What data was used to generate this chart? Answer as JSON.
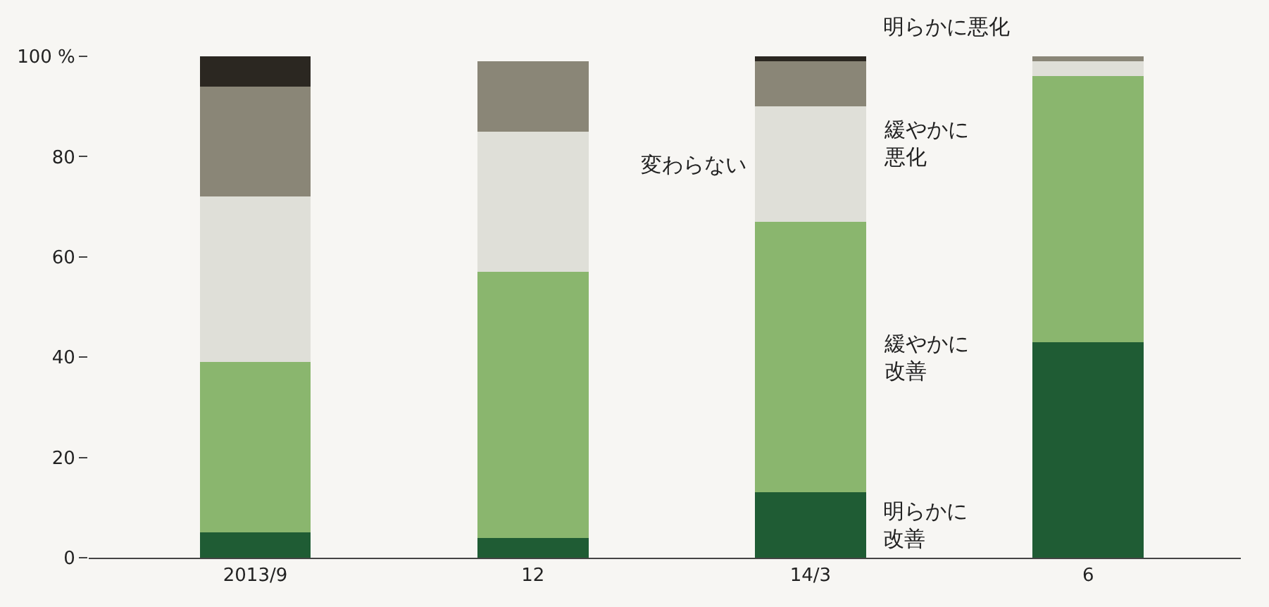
{
  "chart_data": {
    "type": "bar",
    "stacked": true,
    "categories": [
      "2013/9",
      "12",
      "14/3",
      "6"
    ],
    "series": [
      {
        "name": "明らかに改善",
        "color": "#1f5c34",
        "values": [
          5,
          4,
          13,
          43
        ]
      },
      {
        "name": "緩やかに改善",
        "color": "#8ab66e",
        "values": [
          34,
          53,
          54,
          53
        ]
      },
      {
        "name": "変わらない",
        "color": "#dfdfd8",
        "values": [
          33,
          28,
          23,
          3
        ]
      },
      {
        "name": "緩やかに悪化",
        "color": "#8a8677",
        "values": [
          22,
          14,
          9,
          1
        ]
      },
      {
        "name": "明らかに悪化",
        "color": "#2b2721",
        "values": [
          6,
          0,
          1,
          0
        ]
      }
    ],
    "ylim": [
      0,
      100
    ],
    "yticks": [
      0,
      20,
      40,
      60,
      80,
      {
        "value": 100,
        "label": "100 %"
      }
    ],
    "grid": false,
    "legend": false
  }
}
